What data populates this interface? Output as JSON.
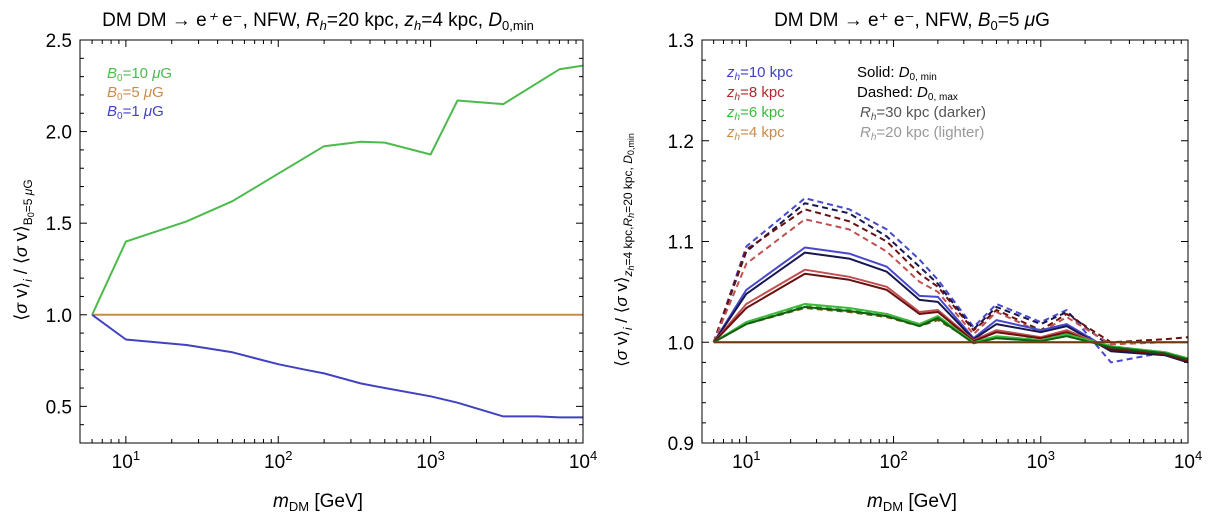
{
  "chart_data": [
    {
      "type": "line",
      "title": "DM DM → e⁺ e⁻, NFW, Rₕ=20 kpc, zₕ=4 kpc, D₀,min",
      "xlabel": "m_DM [GeV]",
      "ylabel": "⟨σ v⟩ᵢ / ⟨σ v⟩_{B₀=5 μG}",
      "xscale": "log",
      "xlim": [
        5,
        10000
      ],
      "ylim": [
        0.3,
        2.5
      ],
      "xticks": [
        10,
        100,
        1000,
        10000
      ],
      "xtick_labels": [
        "10^1",
        "10^2",
        "10^3",
        "10^4"
      ],
      "yticks": [
        0.5,
        1.0,
        1.5,
        2.0,
        2.5
      ],
      "ytick_labels": [
        "0.5",
        "1.0",
        "1.5",
        "2.0",
        "2.5"
      ],
      "legend_position": "top-left",
      "series": [
        {
          "name": "B₀=10 μG",
          "color": "#4cbb4c",
          "style": "solid",
          "x": [
            6,
            10,
            25,
            50,
            100,
            200,
            350,
            500,
            1000,
            1500,
            3000,
            7000,
            10000
          ],
          "y": [
            1.0,
            1.4,
            1.51,
            1.62,
            1.77,
            1.92,
            1.945,
            1.94,
            1.875,
            2.17,
            2.15,
            2.34,
            2.36
          ]
        },
        {
          "name": "B₀=5 μG",
          "color": "#cc8a4a",
          "style": "solid",
          "x": [
            6,
            10000
          ],
          "y": [
            1.0,
            1.0
          ]
        },
        {
          "name": "B₀=1 μG",
          "color": "#4242c0",
          "style": "solid",
          "x": [
            6,
            10,
            25,
            50,
            100,
            150,
            200,
            350,
            500,
            1000,
            1500,
            3000,
            5000,
            7000,
            10000
          ],
          "y": [
            1.0,
            0.865,
            0.835,
            0.795,
            0.73,
            0.7,
            0.68,
            0.625,
            0.6,
            0.555,
            0.52,
            0.445,
            0.445,
            0.44,
            0.44
          ]
        }
      ]
    },
    {
      "type": "line",
      "title": "DM DM → e⁺ e⁻, NFW, B₀=5 μG",
      "xlabel": "m_DM [GeV]",
      "ylabel": "⟨σ v⟩ᵢ / ⟨σ v⟩_{zₕ=4 kpc, Rₕ=20 kpc, D₀,min}",
      "xscale": "log",
      "xlim": [
        5,
        10000
      ],
      "ylim": [
        0.9,
        1.3
      ],
      "xticks": [
        10,
        100,
        1000,
        10000
      ],
      "xtick_labels": [
        "10^1",
        "10^2",
        "10^3",
        "10^4"
      ],
      "yticks": [
        0.9,
        1.0,
        1.1,
        1.2,
        1.3
      ],
      "ytick_labels": [
        "0.9",
        "1.0",
        "1.1",
        "1.2",
        "1.3"
      ],
      "legend_position": "top-left",
      "legend": [
        {
          "label": "zₕ=10 kpc",
          "color": "#4242c0"
        },
        {
          "label": "zₕ=8 kpc",
          "color": "#b02a2a"
        },
        {
          "label": "zₕ=6 kpc",
          "color": "#3cb83c"
        },
        {
          "label": "zₕ=4 kpc",
          "color": "#cc8a4a"
        }
      ],
      "style_notes": [
        {
          "label": "Solid: D₀,min",
          "color": "#000000"
        },
        {
          "label": "Dashed: D₀,max",
          "color": "#000000"
        },
        {
          "label": "Rₕ=30 kpc (darker)",
          "color": "#555555"
        },
        {
          "label": "Rₕ=20 kpc (lighter)",
          "color": "#999999"
        }
      ],
      "series": [
        {
          "color": "#4848cc",
          "style": "dashed",
          "x": [
            6,
            10,
            25,
            50,
            90,
            150,
            200,
            350,
            500,
            1000,
            1500,
            3000,
            7000,
            10000
          ],
          "y": [
            1.0,
            1.095,
            1.143,
            1.132,
            1.112,
            1.082,
            1.062,
            1.015,
            1.038,
            1.02,
            1.032,
            0.98,
            0.99,
            0.982
          ]
        },
        {
          "color": "#161650",
          "style": "dashed",
          "x": [
            6,
            10,
            25,
            50,
            90,
            150,
            200,
            350,
            500,
            1000,
            1500,
            3000,
            7000,
            10000
          ],
          "y": [
            1.0,
            1.09,
            1.138,
            1.128,
            1.105,
            1.075,
            1.058,
            1.013,
            1.035,
            1.018,
            1.03,
            0.995,
            0.99,
            0.983
          ]
        },
        {
          "color": "#6a1010",
          "style": "dashed",
          "x": [
            6,
            10,
            25,
            50,
            90,
            150,
            200,
            350,
            500,
            1000,
            1500,
            3000,
            7000,
            10000
          ],
          "y": [
            1.0,
            1.092,
            1.132,
            1.12,
            1.1,
            1.068,
            1.055,
            1.012,
            1.032,
            1.012,
            1.028,
            1.0,
            1.003,
            1.005
          ]
        },
        {
          "color": "#c05050",
          "style": "dashed",
          "x": [
            6,
            10,
            25,
            50,
            90,
            150,
            200,
            350,
            500,
            1000,
            1500,
            3000,
            7000,
            10000
          ],
          "y": [
            1.0,
            1.078,
            1.122,
            1.112,
            1.09,
            1.06,
            1.05,
            1.008,
            1.03,
            1.01,
            1.025,
            0.998,
            1.0,
            1.0
          ]
        },
        {
          "color": "#3cb83c",
          "style": "dashed",
          "x": [
            6,
            10,
            25,
            50,
            90,
            150,
            200,
            350,
            500,
            1000,
            1500,
            3000,
            7000,
            10000
          ],
          "y": [
            1.0,
            1.02,
            1.036,
            1.032,
            1.028,
            1.018,
            1.025,
            1.002,
            1.005,
            1.003,
            1.008,
            0.995,
            0.99,
            0.984
          ]
        },
        {
          "color": "#6a5a10",
          "style": "dashed",
          "x": [
            6,
            10,
            25,
            50,
            90,
            150,
            200,
            350,
            500,
            1000,
            1500,
            3000,
            7000,
            10000
          ],
          "y": [
            1.0,
            1.018,
            1.034,
            1.03,
            1.025,
            1.016,
            1.022,
            1.001,
            1.004,
            1.002,
            1.006,
            0.996,
            0.99,
            0.984
          ]
        },
        {
          "color": "#4848cc",
          "style": "solid",
          "x": [
            6,
            10,
            25,
            50,
            90,
            150,
            200,
            350,
            500,
            1000,
            1500,
            3000,
            7000,
            10000
          ],
          "y": [
            1.0,
            1.052,
            1.094,
            1.088,
            1.075,
            1.046,
            1.045,
            1.004,
            1.022,
            1.012,
            1.018,
            0.992,
            0.988,
            0.981
          ]
        },
        {
          "color": "#161650",
          "style": "solid",
          "x": [
            6,
            10,
            25,
            50,
            90,
            150,
            200,
            350,
            500,
            1000,
            1500,
            3000,
            7000,
            10000
          ],
          "y": [
            1.0,
            1.048,
            1.089,
            1.083,
            1.07,
            1.042,
            1.04,
            1.003,
            1.018,
            1.01,
            1.016,
            0.991,
            0.987,
            0.98
          ]
        },
        {
          "color": "#c05050",
          "style": "solid",
          "x": [
            6,
            10,
            25,
            50,
            90,
            150,
            200,
            350,
            500,
            1000,
            1500,
            3000,
            7000,
            10000
          ],
          "y": [
            1.0,
            1.038,
            1.072,
            1.065,
            1.055,
            1.03,
            1.032,
            1.002,
            1.012,
            1.005,
            1.012,
            0.994,
            0.989,
            0.982
          ]
        },
        {
          "color": "#6a1010",
          "style": "solid",
          "x": [
            6,
            10,
            25,
            50,
            90,
            150,
            200,
            350,
            500,
            1000,
            1500,
            3000,
            7000,
            10000
          ],
          "y": [
            1.0,
            1.034,
            1.068,
            1.062,
            1.052,
            1.028,
            1.03,
            1.001,
            1.01,
            1.004,
            1.01,
            0.993,
            0.988,
            0.981
          ]
        },
        {
          "color": "#3cb83c",
          "style": "solid",
          "x": [
            6,
            10,
            25,
            50,
            90,
            150,
            200,
            350,
            500,
            1000,
            1500,
            3000,
            7000,
            10000
          ],
          "y": [
            1.0,
            1.02,
            1.038,
            1.034,
            1.028,
            1.018,
            1.026,
            1.0,
            1.006,
            1.002,
            1.008,
            0.996,
            0.99,
            0.984
          ]
        },
        {
          "color": "#106010",
          "style": "solid",
          "x": [
            6,
            10,
            25,
            50,
            90,
            150,
            200,
            350,
            500,
            1000,
            1500,
            3000,
            7000,
            10000
          ],
          "y": [
            1.0,
            1.018,
            1.035,
            1.031,
            1.026,
            1.016,
            1.024,
            0.999,
            1.004,
            1.001,
            1.006,
            0.995,
            0.989,
            0.983
          ]
        },
        {
          "color": "#cc8a4a",
          "style": "solid",
          "x": [
            6,
            10000
          ],
          "y": [
            1.0,
            1.0
          ]
        },
        {
          "color": "#6a3a10",
          "style": "solid",
          "x": [
            6,
            10000
          ],
          "y": [
            1.0,
            1.0
          ]
        }
      ]
    }
  ]
}
